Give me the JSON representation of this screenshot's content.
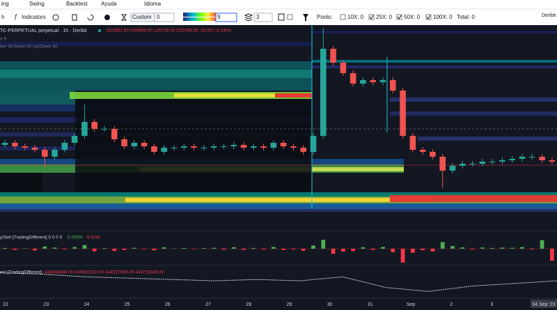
{
  "menu": [
    "ing",
    "Swing",
    "Backtest",
    "Ayuda",
    "Idioma"
  ],
  "toolbar": {
    "interval": "h",
    "indicators": "Indicators",
    "preset": "Custom",
    "from": "0",
    "to": "9",
    "depth": "3",
    "pools_label": "Pools:",
    "pools": [
      "10X: 0",
      "25X: 0",
      "50X: 0",
      "100X: 0"
    ],
    "total": "Total: 0",
    "exchange": "Deribit"
  },
  "chart_data": [
    {
      "type": "candlestick",
      "title": "TC-PERPETUAL perpetual · 1h · Deribit",
      "readout": "O25851.50 H25964.50 L25725.00 C25789.50 -62.00 (-0.24%)",
      "settings": [
        "a 9",
        "ber Of Rows 50 Up/Down 60"
      ],
      "categories": [
        "22",
        "23",
        "24",
        "25",
        "26",
        "27",
        "28",
        "29",
        "30",
        "31",
        "Sep",
        "2",
        "3",
        "04 Sep '23"
      ],
      "ylim": [
        25000,
        26470
      ],
      "up_color": "#26a69a",
      "down_color": "#ef5350",
      "open": [
        25610,
        25625,
        25600,
        25590,
        25575,
        25525,
        25575,
        25625,
        25675,
        25775,
        25725,
        25725,
        25650,
        25600,
        25625,
        25600,
        25560,
        25590,
        25590,
        25600,
        25590,
        25590,
        25600,
        25600,
        25610,
        25590,
        25600,
        25590,
        25625,
        25600,
        25590,
        25560,
        25675,
        26300,
        26200,
        26125,
        26050,
        26075,
        26060,
        26075,
        26000,
        25675,
        25575,
        25560,
        25525,
        25425,
        25460,
        25475,
        25475,
        25490,
        25490,
        25500,
        25510,
        25525,
        25525,
        25500
      ],
      "high": [
        25645,
        25645,
        25620,
        25610,
        25595,
        25595,
        25645,
        25695,
        25900,
        25795,
        25745,
        25745,
        25670,
        25645,
        25645,
        25620,
        25610,
        25610,
        25620,
        25620,
        25610,
        25620,
        25620,
        25630,
        25630,
        25620,
        25620,
        25645,
        25645,
        25620,
        25610,
        25695,
        26450,
        26320,
        26220,
        26145,
        26095,
        26095,
        26095,
        26095,
        26020,
        25695,
        25595,
        25580,
        25545,
        25480,
        25495,
        25495,
        25510,
        25510,
        25520,
        25530,
        25545,
        25545,
        25545,
        25520
      ],
      "low": [
        25590,
        25580,
        25570,
        25555,
        25450,
        25505,
        25555,
        25605,
        25655,
        25705,
        25705,
        25630,
        25580,
        25580,
        25580,
        25540,
        25540,
        25570,
        25570,
        25570,
        25570,
        25570,
        25580,
        25580,
        25570,
        25570,
        25570,
        25570,
        25580,
        25570,
        25540,
        25540,
        25655,
        26180,
        26105,
        26030,
        26030,
        26040,
        26040,
        25980,
        25655,
        25555,
        25540,
        25505,
        25300,
        25405,
        25440,
        25455,
        25455,
        25470,
        25470,
        25480,
        25490,
        25505,
        25480,
        25470
      ],
      "close": [
        25625,
        25600,
        25590,
        25575,
        25525,
        25575,
        25625,
        25675,
        25775,
        25725,
        25725,
        25650,
        25600,
        25625,
        25600,
        25560,
        25590,
        25590,
        25600,
        25590,
        25590,
        25600,
        25600,
        25610,
        25590,
        25600,
        25590,
        25625,
        25600,
        25590,
        25560,
        25675,
        26300,
        26200,
        26125,
        26050,
        26075,
        26060,
        26075,
        26000,
        25675,
        25575,
        25560,
        25525,
        25425,
        25460,
        25475,
        25475,
        25490,
        25490,
        25500,
        25510,
        25525,
        25525,
        25500,
        25490
      ]
    },
    {
      "type": "bar",
      "title": "y/Sell [TradingDifferent] 0 0 0 0",
      "readout": [
        "6.055M",
        "-9.47M"
      ],
      "ylim": [
        -10,
        10
      ],
      "up_color": "#4caf50",
      "down_color": "#f23645",
      "values": [
        0.5,
        -0.8,
        0.3,
        -1.2,
        1.5,
        0.8,
        -0.5,
        1.1,
        2.5,
        -1.8,
        0.4,
        -1.5,
        -0.9,
        0.6,
        -0.4,
        -1.1,
        0.9,
        0.2,
        0.5,
        -0.3,
        0.4,
        0.6,
        -0.7,
        1.0,
        -0.8,
        0.5,
        -0.6,
        1.2,
        -0.9,
        -0.5,
        -1.4,
        2.2,
        6.1,
        -3.5,
        -2.0,
        -1.6,
        1.0,
        -0.8,
        1.2,
        -2.4,
        -9.5,
        -2.8,
        -1.0,
        -1.9,
        4.5,
        1.8,
        0.9,
        -0.6,
        0.8,
        0.5,
        0.7,
        0.6,
        1.1,
        -0.5,
        5.8,
        -8.2
      ]
    },
    {
      "type": "line",
      "title": "est [TradingDifferent]",
      "readout": "-434948448.00 435620230.00 434527560.00 434718346.00",
      "ylim": [
        433800000,
        436000000
      ],
      "color": "#d1d4dc",
      "values": [
        435600000,
        435500000,
        435300000,
        435200000,
        435100000,
        435000000,
        435100000,
        435000000,
        435300000,
        434500000,
        434200000,
        434600000,
        434800000,
        435000000
      ]
    }
  ]
}
